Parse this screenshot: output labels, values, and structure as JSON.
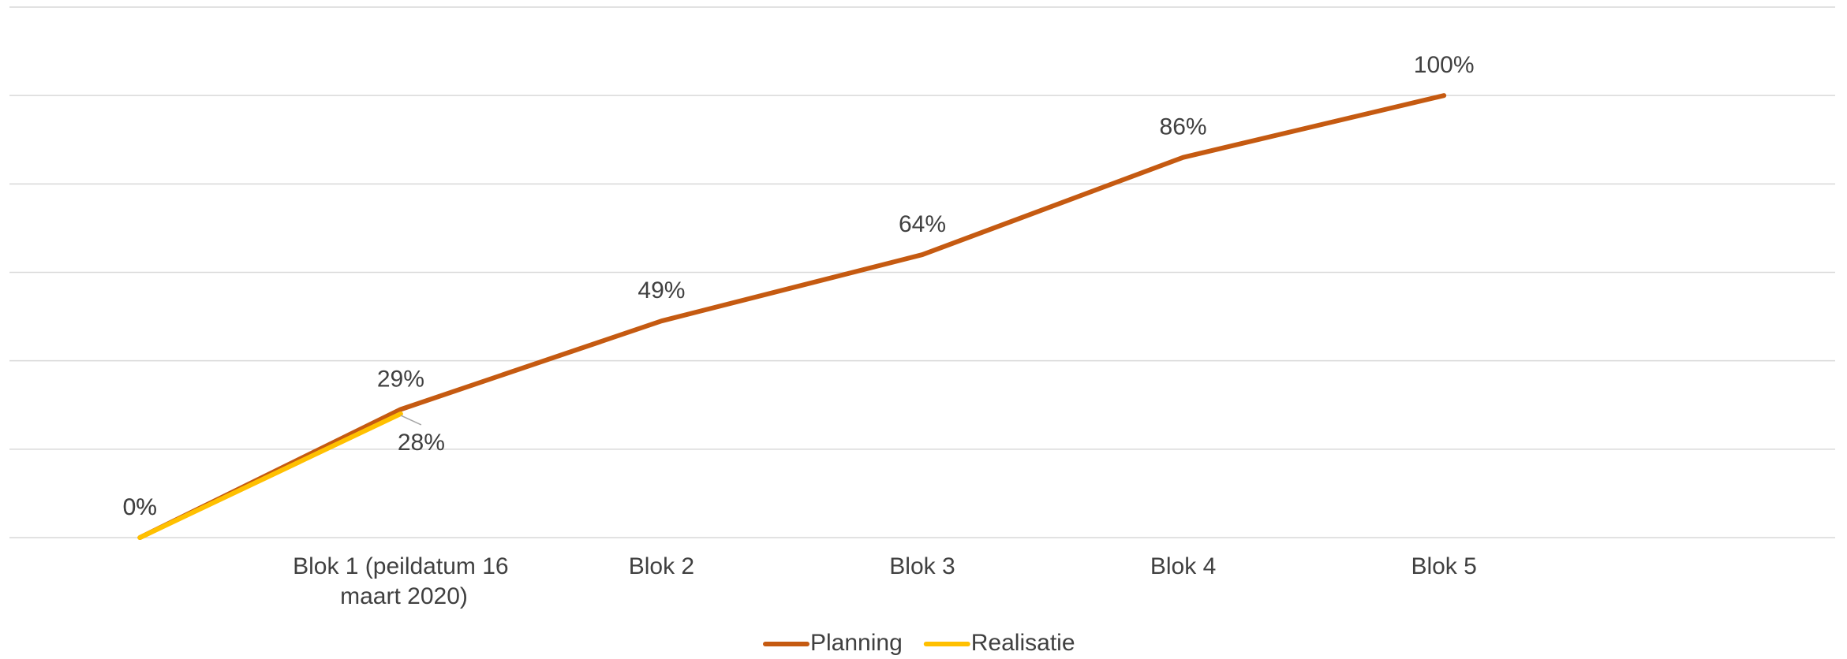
{
  "chart_data": {
    "type": "line",
    "categories": [
      null,
      "Blok 1 (peildatum 16 maart 2020)",
      "Blok 2",
      "Blok 3",
      "Blok 4",
      "Blok 5",
      null
    ],
    "series": [
      {
        "name": "Planning",
        "color": "#c55a11",
        "values": [
          0,
          29,
          49,
          64,
          86,
          100,
          null
        ],
        "value_labels": [
          "0%",
          "29%",
          "49%",
          "64%",
          "86%",
          "100%",
          null
        ]
      },
      {
        "name": "Realisatie",
        "color": "#ffc000",
        "values": [
          0,
          28,
          null,
          null,
          null,
          null,
          null
        ],
        "value_labels": [
          "0%",
          "28%",
          null,
          null,
          null,
          null,
          null
        ]
      }
    ],
    "ylim": [
      0,
      120
    ],
    "yticks": [
      0,
      20,
      40,
      60,
      80,
      100,
      120
    ],
    "grid": true,
    "legend": "bottom"
  }
}
